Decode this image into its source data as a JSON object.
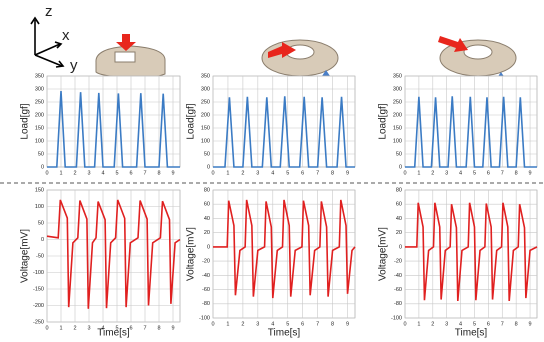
{
  "diagram": {
    "axis_labels": [
      "z",
      "x",
      "y"
    ]
  },
  "chart_data": [
    {
      "type": "line",
      "ylabel": "Load[gf]",
      "color": "#3b7bc4",
      "xlim": [
        0,
        9.5
      ],
      "xticks": [
        0,
        1,
        2,
        3,
        4,
        5,
        6,
        7,
        8,
        9
      ],
      "ylim": [
        0,
        350
      ],
      "yticks": [
        0,
        50,
        100,
        150,
        200,
        250,
        300,
        350
      ],
      "grid": true,
      "x": [
        0,
        0.7,
        1.0,
        1.3,
        2.1,
        2.4,
        2.7,
        3.4,
        3.7,
        4.0,
        4.8,
        5.1,
        5.4,
        6.4,
        6.7,
        7.0,
        8.0,
        8.3,
        8.6,
        9.5
      ],
      "values": [
        0,
        0,
        292,
        0,
        0,
        288,
        0,
        0,
        285,
        0,
        0,
        283,
        0,
        0,
        284,
        0,
        0,
        282,
        0,
        0
      ]
    },
    {
      "type": "line",
      "ylabel": "Load[gf]",
      "color": "#3b7bc4",
      "xlim": [
        0,
        9.5
      ],
      "xticks": [
        0,
        1,
        2,
        3,
        4,
        5,
        6,
        7,
        8,
        9
      ],
      "ylim": [
        0,
        350
      ],
      "yticks": [
        0,
        50,
        100,
        150,
        200,
        250,
        300,
        350
      ],
      "grid": true,
      "x": [
        0,
        0.8,
        1.1,
        1.4,
        2.0,
        2.3,
        2.6,
        3.3,
        3.6,
        3.9,
        4.5,
        4.8,
        5.1,
        5.8,
        6.1,
        6.4,
        7.0,
        7.3,
        7.6,
        8.3,
        8.6,
        8.9,
        9.5
      ],
      "values": [
        0,
        0,
        268,
        0,
        0,
        270,
        0,
        0,
        268,
        0,
        0,
        272,
        0,
        0,
        270,
        0,
        0,
        268,
        0,
        0,
        270,
        0,
        0
      ]
    },
    {
      "type": "line",
      "ylabel": "Load[gf]",
      "color": "#3b7bc4",
      "xlim": [
        0,
        9.5
      ],
      "xticks": [
        0,
        1,
        2,
        3,
        4,
        5,
        6,
        7,
        8,
        9
      ],
      "ylim": [
        0,
        350
      ],
      "yticks": [
        0,
        50,
        100,
        150,
        200,
        250,
        300,
        350
      ],
      "grid": true,
      "x": [
        0,
        0.7,
        1.0,
        1.3,
        1.9,
        2.2,
        2.5,
        3.1,
        3.4,
        3.7,
        4.4,
        4.7,
        5.0,
        5.6,
        5.9,
        6.2,
        6.8,
        7.1,
        7.4,
        8.0,
        8.3,
        8.6,
        9.5
      ],
      "values": [
        0,
        0,
        270,
        0,
        0,
        268,
        0,
        0,
        272,
        0,
        0,
        270,
        0,
        0,
        268,
        0,
        0,
        270,
        0,
        0,
        268,
        0,
        0
      ]
    },
    {
      "type": "line",
      "ylabel": "Voltage[mV]",
      "xlabel": "Time[s]",
      "color": "#e02020",
      "xlim": [
        0,
        9.5
      ],
      "xticks": [
        0,
        1,
        2,
        3,
        4,
        5,
        6,
        7,
        8,
        9
      ],
      "ylim": [
        -250,
        150
      ],
      "yticks": [
        -250,
        -200,
        -150,
        -100,
        -50,
        0,
        50,
        100,
        150
      ],
      "grid": true,
      "x": [
        0,
        0.8,
        0.95,
        1.45,
        1.55,
        1.85,
        2.2,
        2.35,
        2.85,
        2.95,
        3.25,
        3.5,
        3.65,
        4.15,
        4.25,
        4.55,
        4.9,
        5.05,
        5.55,
        5.65,
        5.95,
        6.5,
        6.65,
        7.15,
        7.25,
        7.55,
        8.1,
        8.25,
        8.75,
        8.85,
        9.15,
        9.5
      ],
      "values": [
        10,
        5,
        120,
        65,
        -205,
        -10,
        5,
        118,
        62,
        -210,
        -10,
        5,
        115,
        60,
        -208,
        -10,
        5,
        120,
        64,
        -205,
        -10,
        5,
        118,
        62,
        -200,
        -10,
        5,
        116,
        60,
        -195,
        -10,
        0
      ]
    },
    {
      "type": "line",
      "ylabel": "Voltage[mV]",
      "xlabel": "Time[s]",
      "color": "#e02020",
      "xlim": [
        0,
        9.5
      ],
      "xticks": [
        0,
        1,
        2,
        3,
        4,
        5,
        6,
        7,
        8,
        9
      ],
      "ylim": [
        -100,
        80
      ],
      "yticks": [
        -100,
        -80,
        -60,
        -40,
        -20,
        0,
        20,
        40,
        60,
        80
      ],
      "grid": true,
      "x": [
        0,
        0.95,
        1.05,
        1.4,
        1.5,
        1.8,
        2.15,
        2.25,
        2.6,
        2.7,
        3.0,
        3.45,
        3.55,
        3.9,
        4.0,
        4.3,
        4.65,
        4.75,
        5.1,
        5.2,
        5.5,
        5.95,
        6.05,
        6.4,
        6.5,
        6.8,
        7.15,
        7.25,
        7.6,
        7.7,
        8.0,
        8.45,
        8.55,
        8.9,
        9.0,
        9.3,
        9.5
      ],
      "values": [
        0,
        0,
        65,
        30,
        -68,
        -5,
        0,
        66,
        30,
        -70,
        -5,
        0,
        64,
        28,
        -72,
        -5,
        0,
        66,
        30,
        -70,
        -5,
        0,
        65,
        30,
        -68,
        -5,
        0,
        64,
        28,
        -70,
        -5,
        0,
        66,
        30,
        -66,
        -5,
        0
      ]
    },
    {
      "type": "line",
      "ylabel": "Voltage[mV]",
      "xlabel": "Time[s]",
      "color": "#e02020",
      "xlim": [
        0,
        9.5
      ],
      "xticks": [
        0,
        1,
        2,
        3,
        4,
        5,
        6,
        7,
        8,
        9
      ],
      "ylim": [
        -100,
        80
      ],
      "yticks": [
        -100,
        -80,
        -60,
        -40,
        -20,
        0,
        20,
        40,
        60,
        80
      ],
      "grid": true,
      "x": [
        0,
        0.85,
        0.95,
        1.3,
        1.4,
        1.7,
        2.05,
        2.15,
        2.5,
        2.6,
        2.9,
        3.25,
        3.35,
        3.7,
        3.8,
        4.1,
        4.55,
        4.65,
        5.0,
        5.1,
        5.4,
        5.75,
        5.85,
        6.2,
        6.3,
        6.6,
        6.95,
        7.05,
        7.4,
        7.5,
        7.8,
        8.15,
        8.25,
        8.6,
        8.7,
        9.0,
        9.5
      ],
      "values": [
        0,
        0,
        62,
        28,
        -75,
        -5,
        0,
        62,
        28,
        -74,
        -5,
        0,
        60,
        27,
        -76,
        -5,
        0,
        62,
        28,
        -75,
        -5,
        0,
        61,
        28,
        -74,
        -5,
        0,
        62,
        28,
        -76,
        -5,
        0,
        60,
        27,
        -72,
        -5,
        0
      ]
    }
  ]
}
